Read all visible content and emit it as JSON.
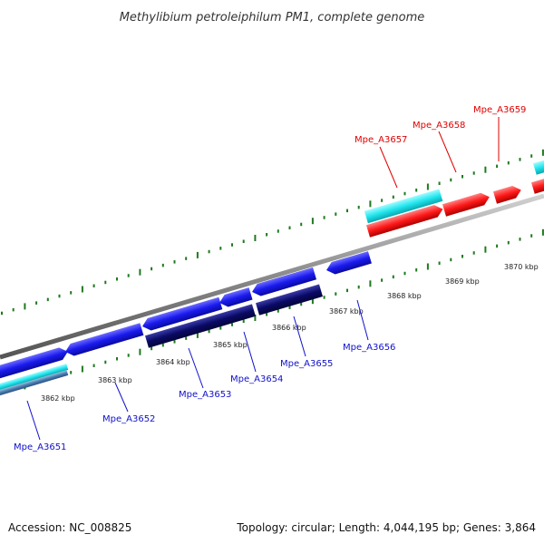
{
  "title": "Methylibium petroleiphilum PM1, complete genome",
  "footer": {
    "accession": "Accession: NC_008825",
    "summary": "Topology: circular; Length: 4,044,195 bp; Genes: 3,864"
  },
  "colors": {
    "backbone": "#8a8a8a",
    "tick": "#1e7a1e",
    "forward_label": "#e00000",
    "reverse_label": "#1010cc",
    "red_feature": "#ff1a1a",
    "cyan_feature": "#22e6ee",
    "blue_feature": "#1a1aee",
    "navy_feature": "#0a0a66"
  },
  "scale": {
    "unit": "kbp",
    "labels": [
      "3862 kbp",
      "3863 kbp",
      "3864 kbp",
      "3865 kbp",
      "3866 kbp",
      "3867 kbp",
      "3868 kbp",
      "3869 kbp",
      "3870 kbp"
    ]
  },
  "genes": {
    "forward": [
      "Mpe_A3657",
      "Mpe_A3658",
      "Mpe_A3659"
    ],
    "reverse": [
      "Mpe_A3651",
      "Mpe_A3652",
      "Mpe_A3653",
      "Mpe_A3654",
      "Mpe_A3655",
      "Mpe_A3656"
    ]
  }
}
